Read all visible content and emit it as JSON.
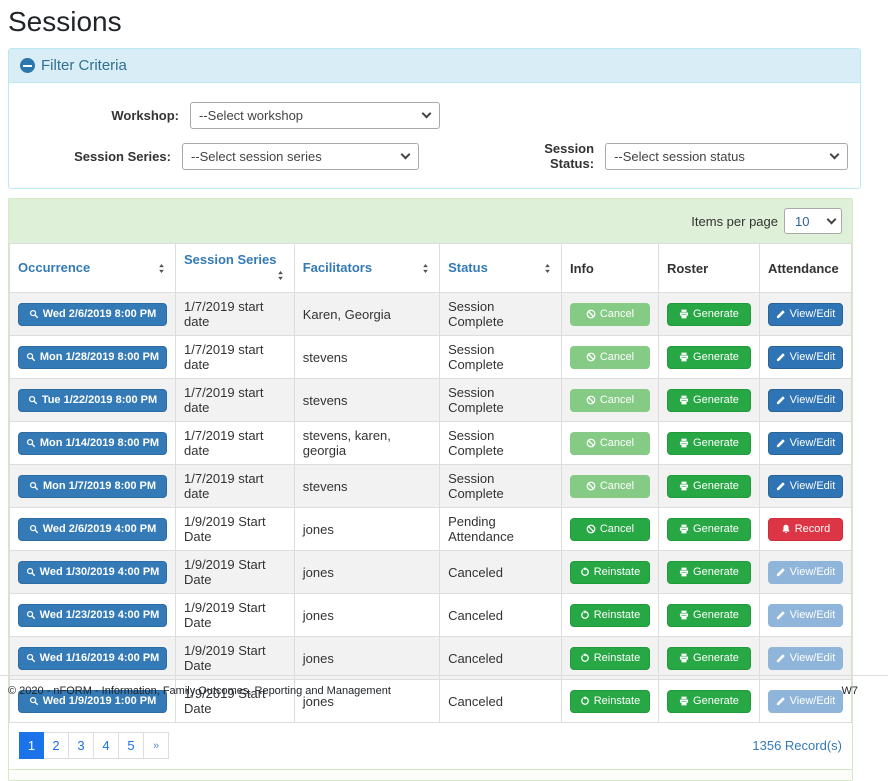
{
  "page": {
    "title": "Sessions"
  },
  "filter": {
    "header": "Filter Criteria",
    "collapse_icon": "minus-circle-icon",
    "fields": [
      {
        "label": "Workshop:",
        "value": "--Select workshop"
      },
      {
        "label": "Session Series:",
        "value": "--Select session series"
      },
      {
        "label": "Session Status:",
        "value": "--Select session status"
      }
    ]
  },
  "table": {
    "items_per_page_label": "Items per page",
    "items_per_page_value": "10",
    "columns": [
      {
        "label": "Occurrence",
        "sortable": true
      },
      {
        "label": "Session Series",
        "sortable": true
      },
      {
        "label": "Facilitators",
        "sortable": true
      },
      {
        "label": "Status",
        "sortable": true
      },
      {
        "label": "Info",
        "sortable": false
      },
      {
        "label": "Roster",
        "sortable": false
      },
      {
        "label": "Attendance",
        "sortable": false
      }
    ],
    "rows": [
      {
        "occurrence": "Wed 2/6/2019 8:00 PM",
        "series": "1/7/2019 start date",
        "facilitators": "Karen, Georgia",
        "status": "Session Complete",
        "info": {
          "label": "Cancel",
          "icon": "ban",
          "variant": "success-disabled",
          "enabled": false
        },
        "roster": {
          "label": "Generate",
          "icon": "print",
          "variant": "success",
          "enabled": true
        },
        "attendance": {
          "label": "View/Edit",
          "icon": "pencil",
          "variant": "primary",
          "enabled": true
        }
      },
      {
        "occurrence": "Mon 1/28/2019 8:00 PM",
        "series": "1/7/2019 start date",
        "facilitators": "stevens",
        "status": "Session Complete",
        "info": {
          "label": "Cancel",
          "icon": "ban",
          "variant": "success-disabled",
          "enabled": false
        },
        "roster": {
          "label": "Generate",
          "icon": "print",
          "variant": "success",
          "enabled": true
        },
        "attendance": {
          "label": "View/Edit",
          "icon": "pencil",
          "variant": "primary",
          "enabled": true
        }
      },
      {
        "occurrence": "Tue 1/22/2019 8:00 PM",
        "series": "1/7/2019 start date",
        "facilitators": "stevens",
        "status": "Session Complete",
        "info": {
          "label": "Cancel",
          "icon": "ban",
          "variant": "success-disabled",
          "enabled": false
        },
        "roster": {
          "label": "Generate",
          "icon": "print",
          "variant": "success",
          "enabled": true
        },
        "attendance": {
          "label": "View/Edit",
          "icon": "pencil",
          "variant": "primary",
          "enabled": true
        }
      },
      {
        "occurrence": "Mon 1/14/2019 8:00 PM",
        "series": "1/7/2019 start date",
        "facilitators": "stevens, karen, georgia",
        "status": "Session Complete",
        "info": {
          "label": "Cancel",
          "icon": "ban",
          "variant": "success-disabled",
          "enabled": false
        },
        "roster": {
          "label": "Generate",
          "icon": "print",
          "variant": "success",
          "enabled": true
        },
        "attendance": {
          "label": "View/Edit",
          "icon": "pencil",
          "variant": "primary",
          "enabled": true
        }
      },
      {
        "occurrence": "Mon 1/7/2019 8:00 PM",
        "series": "1/7/2019 start date",
        "facilitators": "stevens",
        "status": "Session Complete",
        "info": {
          "label": "Cancel",
          "icon": "ban",
          "variant": "success-disabled",
          "enabled": false
        },
        "roster": {
          "label": "Generate",
          "icon": "print",
          "variant": "success",
          "enabled": true
        },
        "attendance": {
          "label": "View/Edit",
          "icon": "pencil",
          "variant": "primary",
          "enabled": true
        }
      },
      {
        "occurrence": "Wed 2/6/2019 4:00 PM",
        "series": "1/9/2019 Start Date",
        "facilitators": "jones",
        "status": "Pending Attendance",
        "info": {
          "label": "Cancel",
          "icon": "ban",
          "variant": "success",
          "enabled": true
        },
        "roster": {
          "label": "Generate",
          "icon": "print",
          "variant": "success",
          "enabled": true
        },
        "attendance": {
          "label": "Record",
          "icon": "bell",
          "variant": "danger",
          "enabled": true
        }
      },
      {
        "occurrence": "Wed 1/30/2019 4:00 PM",
        "series": "1/9/2019 Start Date",
        "facilitators": "jones",
        "status": "Canceled",
        "info": {
          "label": "Reinstate",
          "icon": "undo",
          "variant": "success",
          "enabled": true
        },
        "roster": {
          "label": "Generate",
          "icon": "print",
          "variant": "success",
          "enabled": true
        },
        "attendance": {
          "label": "View/Edit",
          "icon": "pencil",
          "variant": "primary-disabled",
          "enabled": false
        }
      },
      {
        "occurrence": "Wed 1/23/2019 4:00 PM",
        "series": "1/9/2019 Start Date",
        "facilitators": "jones",
        "status": "Canceled",
        "info": {
          "label": "Reinstate",
          "icon": "undo",
          "variant": "success",
          "enabled": true
        },
        "roster": {
          "label": "Generate",
          "icon": "print",
          "variant": "success",
          "enabled": true
        },
        "attendance": {
          "label": "View/Edit",
          "icon": "pencil",
          "variant": "primary-disabled",
          "enabled": false
        }
      },
      {
        "occurrence": "Wed 1/16/2019 4:00 PM",
        "series": "1/9/2019 Start Date",
        "facilitators": "jones",
        "status": "Canceled",
        "info": {
          "label": "Reinstate",
          "icon": "undo",
          "variant": "success",
          "enabled": true
        },
        "roster": {
          "label": "Generate",
          "icon": "print",
          "variant": "success",
          "enabled": true
        },
        "attendance": {
          "label": "View/Edit",
          "icon": "pencil",
          "variant": "primary-disabled",
          "enabled": false
        }
      },
      {
        "occurrence": "Wed 1/9/2019 1:00 PM",
        "series": "1/9/2019 Start Date",
        "facilitators": "jones",
        "status": "Canceled",
        "info": {
          "label": "Reinstate",
          "icon": "undo",
          "variant": "success",
          "enabled": true
        },
        "roster": {
          "label": "Generate",
          "icon": "print",
          "variant": "success",
          "enabled": true
        },
        "attendance": {
          "label": "View/Edit",
          "icon": "pencil",
          "variant": "primary-disabled",
          "enabled": false
        }
      }
    ],
    "record_count": "1356 Record(s)"
  },
  "pagination": {
    "pages": [
      "1",
      "2",
      "3",
      "4",
      "5"
    ],
    "active": "1",
    "next_label": "»"
  },
  "footer": {
    "copyright": "© 2020 - nFORM - Information, Family Outcomes, Reporting and Management",
    "env": "W7"
  },
  "colors": {
    "accent_blue": "#337ab7",
    "panel_blue_bg": "#d9edf7",
    "panel_blue_border": "#bce8f1",
    "panel_green_bg": "#dff0d8",
    "panel_green_border": "#d6e9c6",
    "success": "#28a745",
    "danger": "#dc3545",
    "pagination_active": "#1a73e8"
  }
}
